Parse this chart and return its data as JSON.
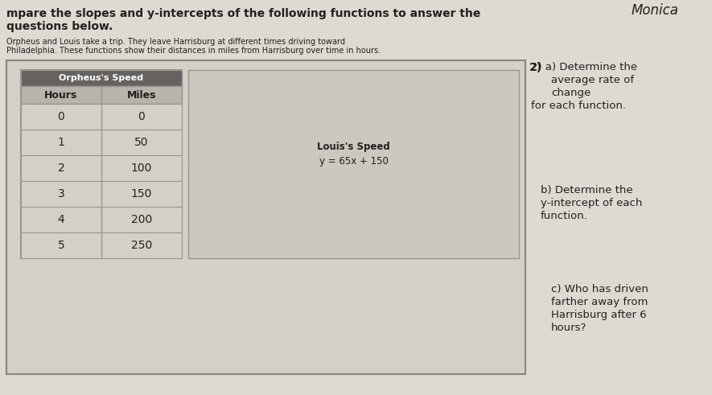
{
  "title_line1": "mpare the slopes and y-intercepts of the following functions to answer the",
  "title_line2": "questions below.",
  "name": "Monica",
  "subtitle1": "Orpheus and Louis take a trip. They leave Harrisburg at different times driving toward",
  "subtitle2": "Philadelphia. These functions show their distances in miles from Harrisburg over time in hours.",
  "problem_number": "2)",
  "table_title": "Orpheus's Speed",
  "table_headers": [
    "Hours",
    "Miles"
  ],
  "table_data": [
    [
      0,
      0
    ],
    [
      1,
      50
    ],
    [
      2,
      100
    ],
    [
      3,
      150
    ],
    [
      4,
      200
    ],
    [
      5,
      250
    ]
  ],
  "louis_label": "Louis's Speed",
  "louis_equation": "y = 65x + 150",
  "bg_color": "#ccc8c0",
  "paper_color": "#dedad2",
  "table_header_bg": "#666260",
  "table_header_text": "#ffffff",
  "table_line_color": "#999590",
  "text_color": "#222020",
  "border_color": "#888480",
  "content_box_color": "#d4d0c8",
  "louis_box_color": "#ccc8c0"
}
